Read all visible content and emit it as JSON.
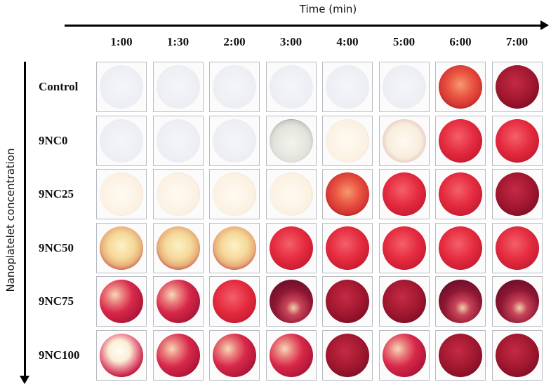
{
  "figure": {
    "x_axis_title": "Time (min)",
    "y_axis_title": "Nanoplatelet concentration",
    "time_points": [
      "1:00",
      "1:30",
      "2:00",
      "3:00",
      "4:00",
      "5:00",
      "6:00",
      "7:00"
    ],
    "rows": [
      {
        "label": "Control",
        "wells": [
          "clear",
          "clear",
          "clear",
          "clear",
          "clear",
          "clear",
          "red-orange",
          "dark-red"
        ]
      },
      {
        "label": "9NC0",
        "wells": [
          "clear",
          "clear",
          "clear",
          "gray-ring",
          "cream",
          "pale-pink",
          "red",
          "red"
        ]
      },
      {
        "label": "9NC25",
        "wells": [
          "cream",
          "cream",
          "cream",
          "cream",
          "red-orange",
          "red",
          "red",
          "dark-red"
        ]
      },
      {
        "label": "9NC50",
        "wells": [
          "yellow-clot",
          "yellow-clot",
          "yellow-clot",
          "red",
          "red",
          "red",
          "red",
          "red"
        ]
      },
      {
        "label": "9NC75",
        "wells": [
          "mottled-red",
          "mottled-red",
          "red",
          "dark-mottled",
          "dark-red",
          "dark-red",
          "dark-mottled",
          "dark-mottled"
        ]
      },
      {
        "label": "9NC100",
        "wells": [
          "white-clot",
          "mottled-red",
          "mottled-red",
          "mottled-red",
          "dark-red",
          "mottled-red",
          "dark-red",
          "dark-red"
        ]
      }
    ]
  },
  "well_styles": {
    "clear": "radial-gradient(circle at 50% 50%, #f4f5f9 0%, #eceef3 70%, #e6e8ee 85%, #6c6f80 90%, #c8cad2 100%)",
    "gray-ring": "radial-gradient(circle at 50% 55%, #f3f4ee 0%, #e2e4dc 55%, #c9ccc6 70%, #4d4f72 82%, #8a8ca6 95%, #d0d2dc 100%)",
    "cream": "radial-gradient(circle at 48% 50%, #fffaf0 0%, #fbf1e2 65%, #f1dccd 80%, #6d5a78 90%, #c9bcc8 100%)",
    "pale-pink": "radial-gradient(circle at 50% 50%, #fffbf0 0%, #f7eddc 55%, #e8c9c4 75%, #9d7c96 88%, #dcd0d8 100%)",
    "red-orange": "radial-gradient(circle at 50% 45%, #f39a72 0%, #ec5a45 35%, #d63632 65%, #7a1420 88%, #b66a72 100%)",
    "red": "radial-gradient(circle at 45% 40%, #f4606a 0%, #e52b3f 45%, #c81c32 75%, #7a1226 92%, #c47b86 100%)",
    "dark-red": "radial-gradient(circle at 45% 40%, #c62a44 0%, #a0172f 50%, #7d0d24 80%, #4e0716 94%, #b07a84 100%)",
    "yellow-clot": "radial-gradient(circle at 50% 45%, #fdf1c7 0%, #f5d99a 40%, #e8b07a 62%, #c34a4a 80%, #862034 92%, #c99aa2 100%)",
    "mottled-red": "radial-gradient(circle at 35% 35%, #f7d8b8 0%, #e97a7a 22%, #d8284a 45%, #b3183a 72%, #6a1230 92%, #b68c9a 100%)",
    "dark-mottled": "radial-gradient(circle at 55% 65%, #f0d2a8 0%, #c8455a 20%, #8e1733 50%, #6a0e2a 80%, #3e0a1c 94%, #a98490 100%)",
    "white-clot": "radial-gradient(circle at 45% 40%, #fffdf4 0%, #fbeed6 30%, #e6798a 52%, #c21f40 72%, #751430 92%, #b58c98 100%)"
  }
}
